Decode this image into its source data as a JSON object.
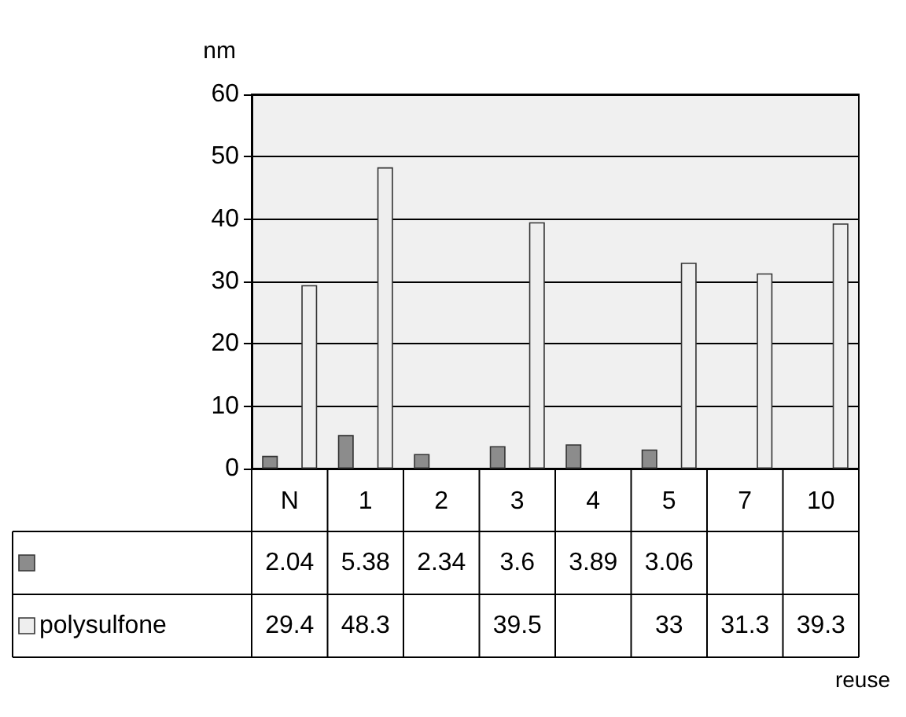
{
  "chart_data": {
    "type": "bar",
    "ylabel": "nm",
    "annotations": [
      "reuse"
    ],
    "categories": [
      "N",
      "1",
      "2",
      "3",
      "4",
      "5",
      "7",
      "10"
    ],
    "series": [
      {
        "color": "#8c8c8c",
        "values": [
          2.04,
          5.38,
          2.34,
          3.6,
          3.89,
          3.06,
          null,
          null
        ]
      },
      {
        "name": "polysulfone",
        "color": "#eeeeee",
        "values": [
          29.4,
          48.3,
          null,
          39.5,
          null,
          33,
          31.3,
          39.3
        ]
      }
    ],
    "ylim": [
      0,
      60
    ],
    "yticks": [
      0,
      10,
      20,
      30,
      40,
      50,
      60
    ],
    "grid": "y",
    "data_labels": true,
    "legend": "bottom"
  }
}
